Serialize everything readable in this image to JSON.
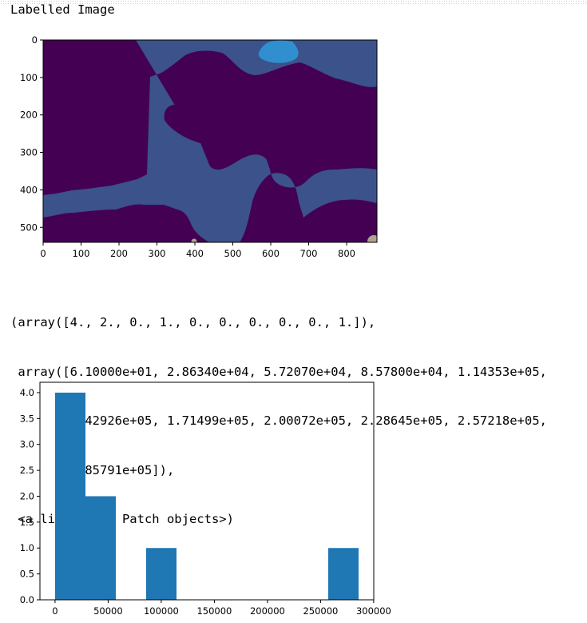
{
  "cell_output": {
    "print_text": "Labelled Image",
    "repr_lines": [
      "(array([4., 2., 0., 1., 0., 0., 0., 0., 0., 1.]),",
      " array([6.10000e+01, 2.86340e+04, 5.72070e+04, 8.57800e+04, 1.14353e+05,",
      "        1.42926e+05, 1.71499e+05, 2.00072e+05, 2.28645e+05, 2.57218e+05,",
      "        2.85791e+05]),",
      " <a list of 10 Patch objects>)"
    ]
  },
  "colors": {
    "dark_purple": "#440154",
    "blue_slate": "#3b528b",
    "cyan_blue": "#2f8fcf",
    "patch_grey": "#b0a290",
    "bar_blue": "#1f77b4"
  },
  "chart_data": [
    {
      "type": "heatmap",
      "title": "",
      "xlabel": "",
      "ylabel": "",
      "x_ticks": [
        "0",
        "100",
        "200",
        "300",
        "400",
        "500",
        "600",
        "700",
        "800"
      ],
      "y_ticks": [
        "0",
        "100",
        "200",
        "300",
        "400",
        "500"
      ],
      "xlim": [
        0,
        880
      ],
      "ylim": [
        540,
        0
      ],
      "grid": false,
      "regions": [
        "background label (dark purple)",
        "main label (slate blue)",
        "small label top (light blue)",
        "small labels at bottom edge (grey)"
      ]
    },
    {
      "type": "bar",
      "title": "",
      "xlabel": "",
      "ylabel": "",
      "bin_edges": [
        61,
        28634,
        57207,
        85780,
        114353,
        142926,
        171499,
        200072,
        228645,
        257218,
        285791
      ],
      "values": [
        4,
        2,
        0,
        1,
        0,
        0,
        0,
        0,
        0,
        1
      ],
      "x_ticks": [
        "0",
        "50000",
        "100000",
        "150000",
        "200000",
        "250000",
        "300000"
      ],
      "y_ticks": [
        "0.0",
        "0.5",
        "1.0",
        "1.5",
        "2.0",
        "2.5",
        "3.0",
        "3.5",
        "4.0"
      ],
      "xlim": [
        -14225,
        300077
      ],
      "ylim": [
        0,
        4.2
      ],
      "grid": false
    }
  ]
}
